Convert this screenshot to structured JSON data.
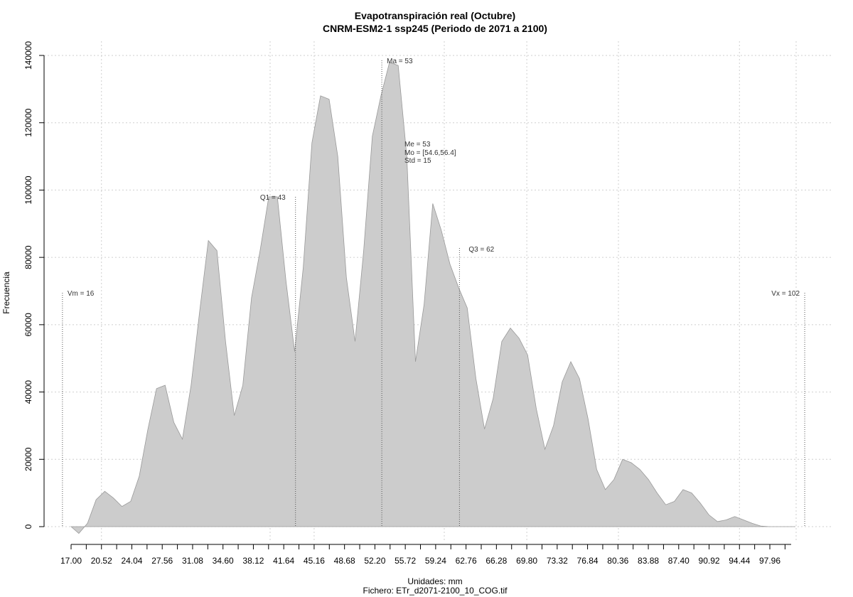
{
  "chart_data": {
    "type": "area",
    "title": "Evapotranspiración real (Octubre)",
    "subtitle": "CNRM-ESM2-1 ssp245 (Periodo de 2071 a 2100)",
    "xlabel": "Unidades: mm",
    "footer": "Fichero: ETr_d2071-2100_10_COG.tif",
    "ylabel": "Frecuencia",
    "xlim": [
      17.0,
      101.5
    ],
    "ylim": [
      -5000,
      142000
    ],
    "grid": true,
    "fill_color": "#cccccc",
    "line_color": "#999999",
    "x_ticks": [
      17.0,
      20.52,
      24.04,
      27.56,
      31.08,
      34.6,
      38.12,
      41.64,
      45.16,
      48.68,
      52.2,
      55.72,
      59.24,
      62.76,
      66.28,
      69.8,
      73.32,
      76.84,
      80.36,
      83.88,
      87.4,
      90.92,
      94.44,
      97.96
    ],
    "x_tick_labels": [
      "17.00",
      "20.52",
      "24.04",
      "27.56",
      "31.08",
      "34.60",
      "38.12",
      "41.64",
      "45.16",
      "48.68",
      "52.20",
      "55.72",
      "59.24",
      "62.76",
      "66.28",
      "69.80",
      "73.32",
      "76.84",
      "80.36",
      "83.88",
      "87.40",
      "90.92",
      "94.44",
      "97.96"
    ],
    "y_ticks": [
      0,
      20000,
      40000,
      60000,
      80000,
      100000,
      120000,
      140000
    ],
    "y_tick_labels": [
      "0",
      "20000",
      "40000",
      "60000",
      "80000",
      "100000",
      "120000",
      "140000"
    ],
    "x": [
      17.0,
      17.9,
      18.9,
      19.9,
      20.9,
      21.9,
      22.9,
      23.9,
      24.9,
      25.9,
      26.9,
      27.9,
      28.9,
      29.9,
      30.9,
      31.9,
      32.9,
      33.9,
      34.9,
      35.9,
      36.9,
      37.9,
      38.9,
      39.9,
      40.9,
      41.9,
      42.9,
      43.9,
      44.9,
      45.9,
      46.9,
      47.9,
      48.9,
      49.9,
      50.9,
      51.9,
      52.9,
      53.9,
      54.9,
      55.9,
      56.9,
      57.9,
      58.9,
      59.9,
      60.9,
      61.9,
      62.9,
      63.9,
      64.9,
      65.9,
      66.9,
      67.9,
      68.9,
      69.9,
      70.9,
      71.9,
      72.9,
      73.9,
      74.9,
      75.9,
      76.9,
      77.9,
      78.9,
      79.9,
      80.9,
      81.9,
      82.9,
      83.9,
      84.9,
      85.9,
      86.9,
      87.9,
      88.9,
      89.9,
      90.9,
      91.9,
      92.9,
      93.9,
      94.9,
      95.9,
      96.9,
      97.9,
      98.9,
      99.9,
      100.9
    ],
    "values": [
      0,
      -2000,
      1000,
      8000,
      10500,
      8500,
      6000,
      7500,
      15000,
      29000,
      41000,
      42000,
      31000,
      26000,
      42000,
      64000,
      85000,
      82000,
      55000,
      33000,
      42000,
      68000,
      82000,
      98000,
      98000,
      73000,
      52000,
      77000,
      114000,
      128000,
      127000,
      110000,
      74000,
      55000,
      82000,
      116000,
      128000,
      138000,
      137000,
      110000,
      49000,
      66000,
      96000,
      88000,
      78000,
      71000,
      65000,
      44000,
      29000,
      38000,
      55000,
      59000,
      56000,
      51000,
      35000,
      23000,
      30000,
      43000,
      49000,
      44000,
      32000,
      17000,
      11000,
      14000,
      20000,
      19000,
      17000,
      14000,
      10000,
      6500,
      7500,
      11000,
      10000,
      7000,
      3500,
      1500,
      2000,
      3000,
      2000,
      1000,
      200,
      0,
      0,
      0,
      0
    ],
    "annotations": {
      "vm": {
        "label": "Vm = 16",
        "x": 16
      },
      "vx": {
        "label": "Vx = 102",
        "x": 102
      },
      "q1": {
        "label": "Q1 = 43",
        "x": 43
      },
      "ma": {
        "label": "Ma = 53",
        "x": 53
      },
      "q3": {
        "label": "Q3 = 62",
        "x": 62
      },
      "stats": [
        "Me = 53",
        "Mo = [54.6,56.4]",
        "Std = 15"
      ]
    }
  }
}
